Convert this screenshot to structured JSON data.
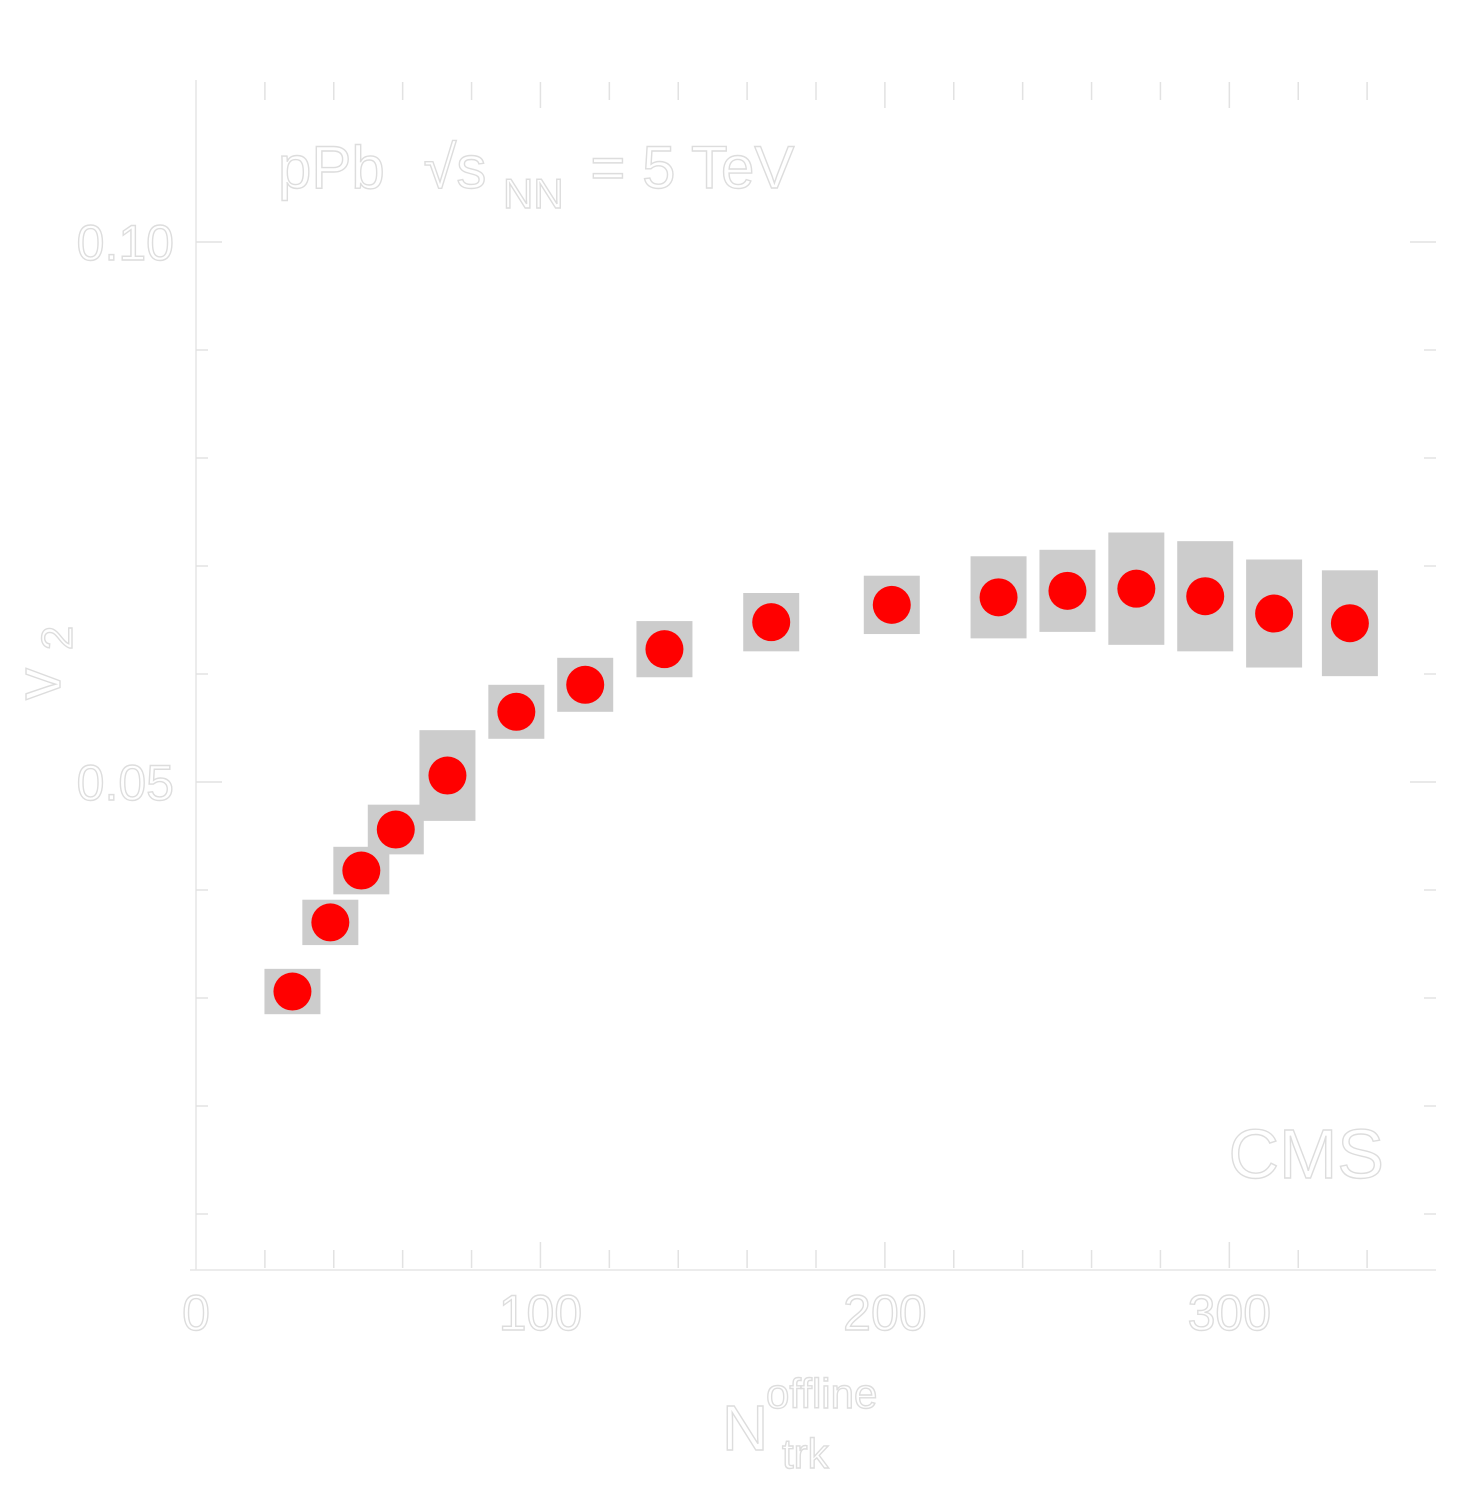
{
  "chart_data": {
    "type": "scatter",
    "collaboration": "CMS",
    "system_label": {
      "system": "pPb",
      "energy_prefix": "√s",
      "energy_subscript": "NN",
      "energy_value": "= 5 TeV"
    },
    "xlabel": {
      "base": "N",
      "subscript": "trk",
      "superscript": "offline"
    },
    "ylabel": {
      "base": "v",
      "subscript": "2"
    },
    "xlim": [
      0,
      360
    ],
    "ylim": [
      0.005,
      0.115
    ],
    "x_ticks": [
      0,
      100,
      200,
      300
    ],
    "x_tick_labels": [
      "0",
      "100",
      "200",
      "300"
    ],
    "y_ticks": [
      0.05,
      0.1
    ],
    "y_tick_labels": [
      "0.05",
      "0.10"
    ],
    "series": [
      {
        "marker": "filled-circle",
        "color": "#ff0000",
        "syst_color": "#cccccc",
        "x": [
          28,
          39,
          48,
          58,
          73,
          93,
          113,
          136,
          167,
          202,
          233,
          253,
          273,
          293,
          313,
          335
        ],
        "y": [
          0.0306,
          0.037,
          0.0418,
          0.0456,
          0.0506,
          0.0565,
          0.059,
          0.0623,
          0.0648,
          0.0664,
          0.0671,
          0.0677,
          0.0679,
          0.0672,
          0.0656,
          0.0647
        ],
        "syst_err": [
          0.0021,
          0.0021,
          0.0022,
          0.0023,
          0.0042,
          0.0025,
          0.0025,
          0.0026,
          0.0027,
          0.0027,
          0.0038,
          0.0038,
          0.0052,
          0.0051,
          0.005,
          0.0049
        ]
      }
    ]
  }
}
